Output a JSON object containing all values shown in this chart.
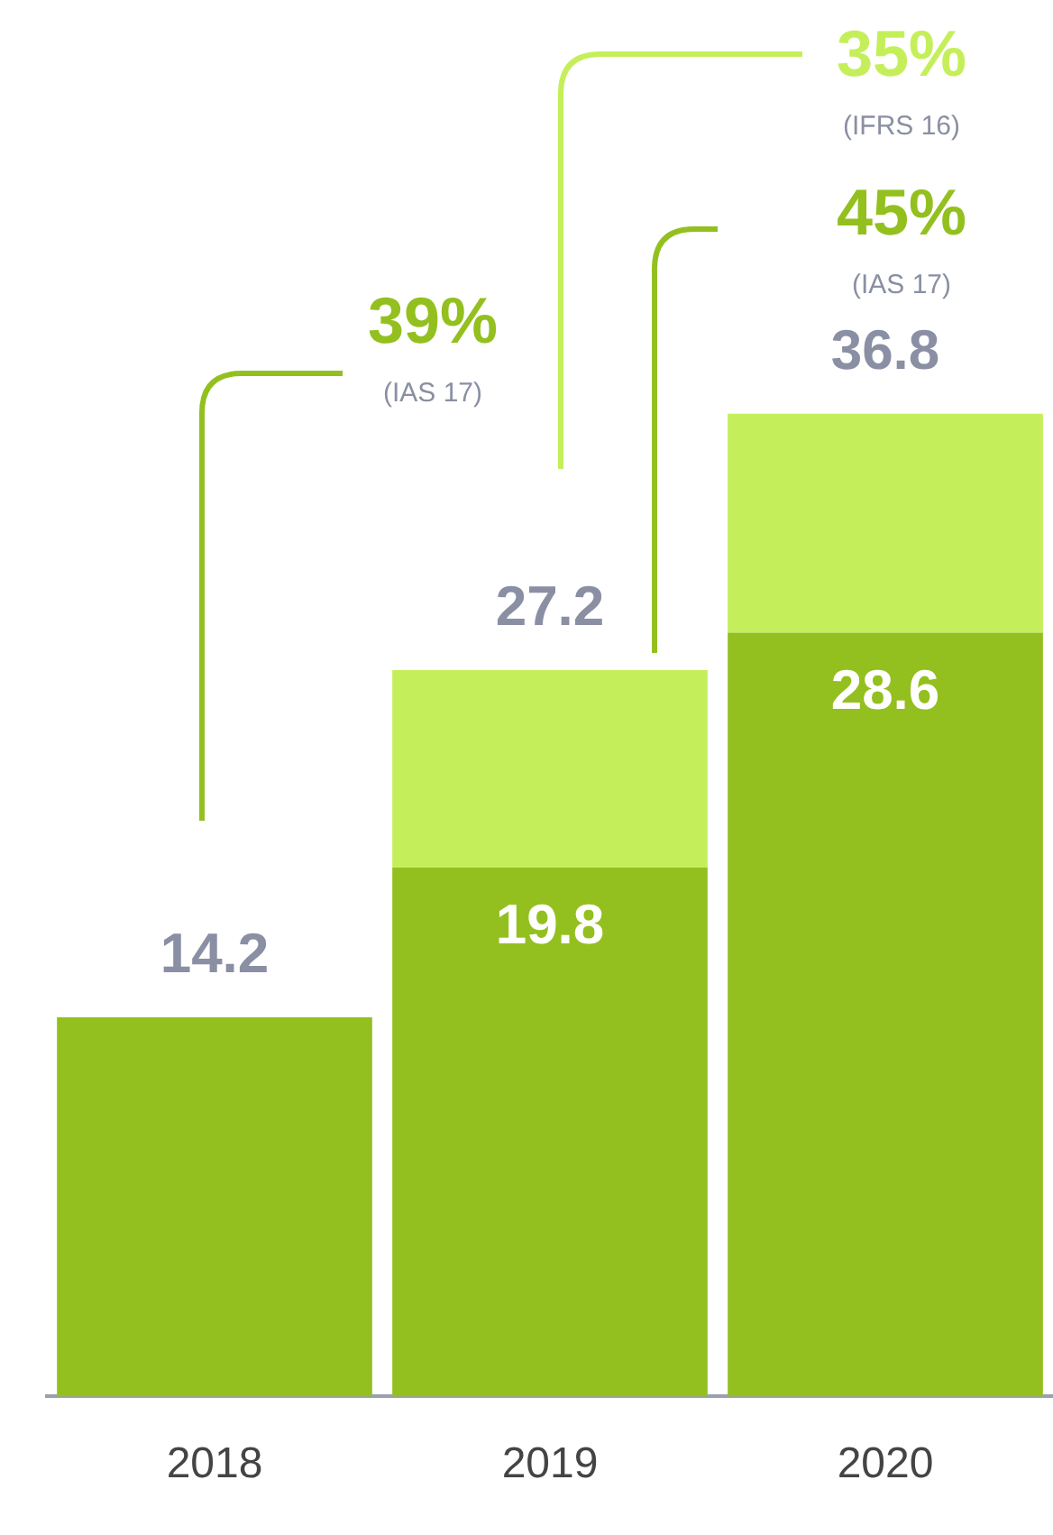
{
  "chart_data": {
    "type": "bar",
    "stacked": true,
    "categories": [
      "2018",
      "2019",
      "2020"
    ],
    "series": [
      {
        "color": "#93c01f",
        "values": [
          14.2,
          19.8,
          28.6
        ],
        "value_labels": [
          null,
          "19.8",
          "28.6"
        ]
      },
      {
        "color": "#c5ef5a",
        "values": [
          null,
          7.4,
          8.2
        ]
      }
    ],
    "totals": [
      "14.2",
      "27.2",
      "36.8"
    ],
    "tick_labels": "x",
    "grid": false,
    "legend": false,
    "annotations": [
      "39%",
      "(IAS 17)",
      "35%",
      "(IFRS 16)",
      "45%",
      "(IAS 17)"
    ]
  }
}
